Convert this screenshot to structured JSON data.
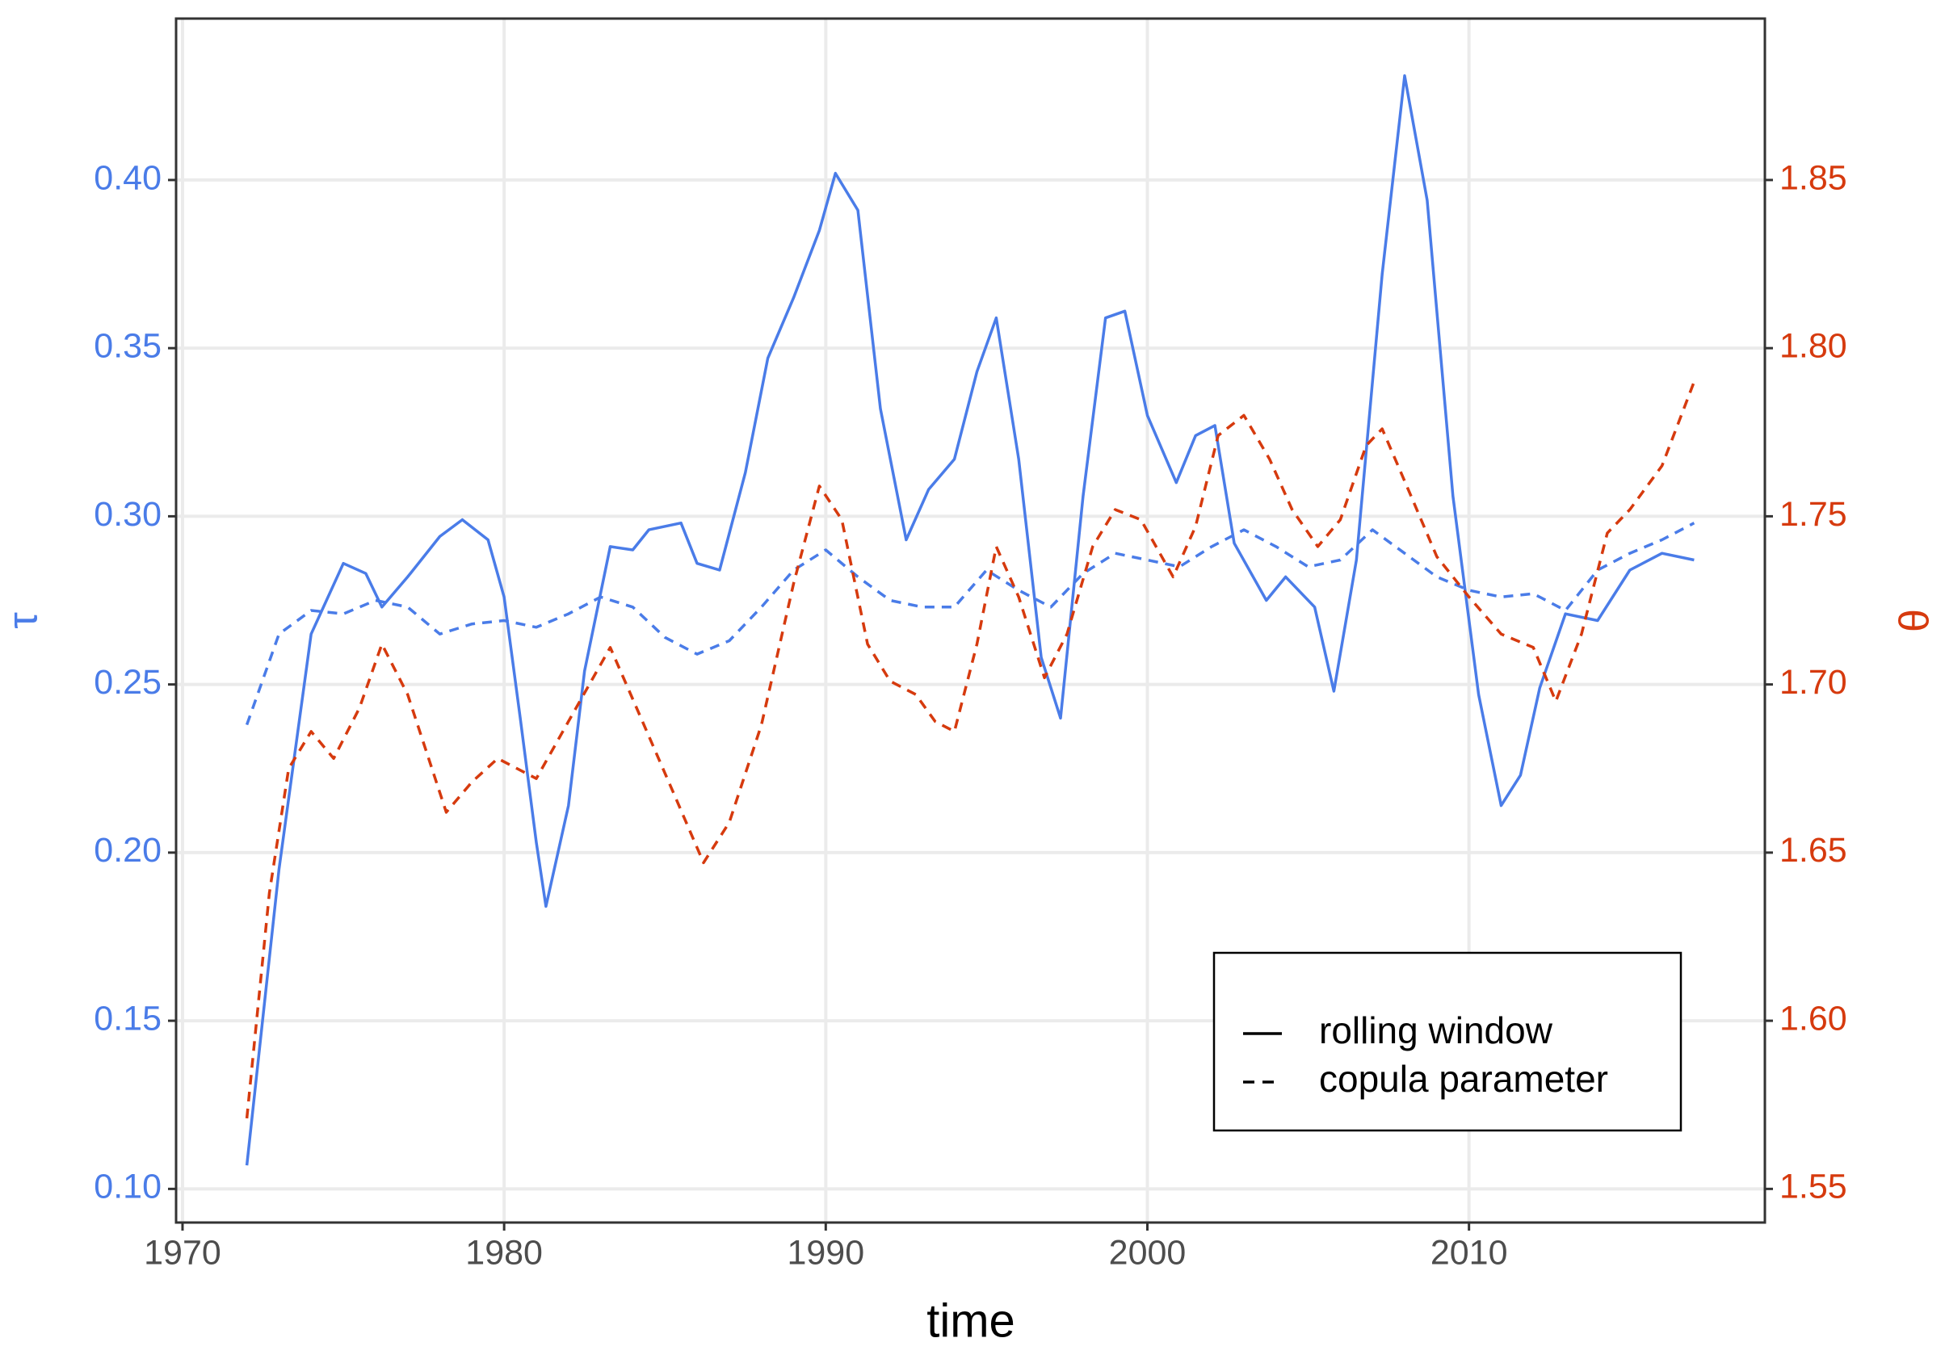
{
  "chart_data": {
    "type": "line",
    "xlabel": "time",
    "ylabel": "τ",
    "y2label": "θ",
    "xlim": [
      1969.8,
      2019.2
    ],
    "xticks": [
      1970,
      1980,
      1990,
      2000,
      2010
    ],
    "ylim": [
      0.09,
      0.448
    ],
    "yticks": [
      {
        "value": 0.1,
        "label": "0.10"
      },
      0.15,
      {
        "value": 0.2,
        "label": "0.20"
      },
      0.25,
      {
        "value": 0.3,
        "label": "0.30"
      },
      0.35,
      {
        "value": 0.4,
        "label": "0.40"
      }
    ],
    "y2lim": [
      1.54,
      1.898
    ],
    "y2ticks": [
      1.55,
      {
        "value": 1.6,
        "label": "1.60"
      },
      1.65,
      {
        "value": 1.7,
        "label": "1.70"
      },
      1.75,
      {
        "value": 1.8,
        "label": "1.80"
      },
      1.85
    ],
    "ycolor": "#4a7ce8",
    "y2color": "#d63a0e",
    "grid": true,
    "legend": "bottom-right",
    "series": [
      {
        "name": "rolling window",
        "color": "#4a7ce8",
        "linestyle": "solid",
        "x": [
          1972,
          1973,
          1974,
          1975,
          1975.7,
          1976.2,
          1977,
          1978,
          1978.7,
          1979.5,
          1980,
          1980.5,
          1981,
          1981.3,
          1982,
          1982.5,
          1983.3,
          1984,
          1984.5,
          1985.5,
          1986,
          1986.7,
          1987.5,
          1988.2,
          1989,
          1989.8,
          1990.3,
          1991,
          1991.7,
          1992.5,
          1993.2,
          1994,
          1994.7,
          1995.3,
          1996,
          1996.7,
          1997.3,
          1998,
          1998.7,
          1999.3,
          2000,
          2000.9,
          2001.5,
          2002.1,
          2002.7,
          2003.7,
          2004.3,
          2005.2,
          2005.8,
          2006.5,
          2007.3,
          2008,
          2008.7,
          2009.5,
          2010.3,
          2011,
          2011.6,
          2012.2,
          2013,
          2014,
          2015,
          2016,
          2017
        ],
        "values": [
          0.107,
          0.195,
          0.265,
          0.286,
          0.283,
          0.273,
          0.282,
          0.294,
          0.299,
          0.293,
          0.276,
          0.24,
          0.203,
          0.184,
          0.214,
          0.254,
          0.291,
          0.29,
          0.296,
          0.298,
          0.286,
          0.284,
          0.313,
          0.347,
          0.365,
          0.385,
          0.402,
          0.391,
          0.332,
          0.293,
          0.308,
          0.317,
          0.343,
          0.359,
          0.317,
          0.258,
          0.24,
          0.306,
          0.359,
          0.361,
          0.33,
          0.31,
          0.324,
          0.327,
          0.292,
          0.275,
          0.282,
          0.273,
          0.248,
          0.287,
          0.372,
          0.431,
          0.394,
          0.306,
          0.247,
          0.214,
          0.223,
          0.249,
          0.271,
          0.269,
          0.284,
          0.289,
          0.287
        ]
      },
      {
        "name": "copula parameter",
        "color": "#4a7ce8",
        "linestyle": "dashed",
        "x": [
          1972,
          1973,
          1974,
          1975,
          1976,
          1977,
          1978,
          1979,
          1980,
          1981,
          1982,
          1983,
          1984,
          1985,
          1986,
          1987,
          1988,
          1989,
          1990,
          1991,
          1992,
          1993,
          1994,
          1995,
          1996,
          1997,
          1998,
          1999,
          2000,
          2001,
          2002,
          2003,
          2004,
          2005,
          2006,
          2007,
          2008,
          2009,
          2010,
          2011,
          2012,
          2013,
          2014,
          2015,
          2016,
          2017
        ],
        "values": [
          0.238,
          0.265,
          0.272,
          0.271,
          0.275,
          0.273,
          0.265,
          0.268,
          0.269,
          0.267,
          0.271,
          0.276,
          0.273,
          0.264,
          0.259,
          0.263,
          0.273,
          0.284,
          0.29,
          0.282,
          0.275,
          0.273,
          0.273,
          0.284,
          0.278,
          0.273,
          0.283,
          0.289,
          0.287,
          0.285,
          0.291,
          0.296,
          0.291,
          0.285,
          0.287,
          0.296,
          0.289,
          0.282,
          0.278,
          0.276,
          0.277,
          0.272,
          0.284,
          0.289,
          0.293,
          0.298
        ]
      },
      {
        "color": "#d63a0e",
        "linestyle": "dashed",
        "axis": "y2",
        "x": [
          1972,
          1972.7,
          1973.3,
          1974,
          1974.7,
          1975.5,
          1976.2,
          1977,
          1978.2,
          1979,
          1979.8,
          1981,
          1982,
          1983.3,
          1984.3,
          1985.3,
          1986.2,
          1987,
          1988,
          1989,
          1989.8,
          1990.5,
          1991.3,
          1992,
          1992.8,
          1993.4,
          1994,
          1994.7,
          1995.3,
          1996,
          1996.8,
          1997.5,
          1998.3,
          1999,
          1999.8,
          2000.8,
          2001.5,
          2002.2,
          2003,
          2003.8,
          2004.5,
          2005.3,
          2006,
          2006.8,
          2007.3,
          2008.2,
          2009,
          2010,
          2011,
          2012,
          2012.7,
          2013.5,
          2014.3,
          2015,
          2016,
          2017
        ],
        "values": [
          1.571,
          1.638,
          1.675,
          1.686,
          1.678,
          1.693,
          1.712,
          1.697,
          1.662,
          1.671,
          1.678,
          1.672,
          1.689,
          1.711,
          1.689,
          1.667,
          1.647,
          1.659,
          1.688,
          1.73,
          1.759,
          1.749,
          1.712,
          1.701,
          1.697,
          1.689,
          1.686,
          1.712,
          1.741,
          1.726,
          1.702,
          1.715,
          1.741,
          1.752,
          1.749,
          1.732,
          1.747,
          1.774,
          1.78,
          1.767,
          1.752,
          1.741,
          1.749,
          1.771,
          1.776,
          1.756,
          1.738,
          1.726,
          1.715,
          1.711,
          1.695,
          1.715,
          1.745,
          1.752,
          1.765,
          1.79
        ]
      }
    ]
  }
}
